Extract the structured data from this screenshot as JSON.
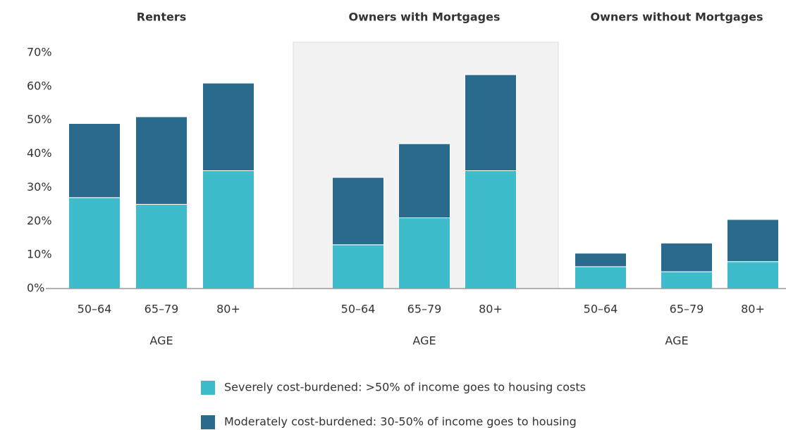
{
  "chart_data": {
    "type": "bar",
    "stacked": true,
    "ylim": [
      0,
      70
    ],
    "yticks": [
      {
        "value": 0,
        "label": "0%"
      },
      {
        "value": 10,
        "label": "10%"
      },
      {
        "value": 20,
        "label": "20%"
      },
      {
        "value": 30,
        "label": "30%"
      },
      {
        "value": 40,
        "label": "40%"
      },
      {
        "value": 50,
        "label": "50%"
      },
      {
        "value": 60,
        "label": "60%"
      },
      {
        "value": 70,
        "label": "70%"
      }
    ],
    "legend": [
      {
        "name": "Severely cost-burdened: >50% of income goes to housing costs",
        "color": "#3fbccc"
      },
      {
        "name": "Moderately cost-burdened: 30-50% of income goes to housing",
        "color": "#2a6a8c"
      }
    ],
    "panels": [
      {
        "title": "Renters",
        "x_label": "AGE",
        "categories": [
          "50–64",
          "65–79",
          "80+"
        ],
        "highlight": false,
        "series": [
          {
            "values": [
              27,
              25,
              35
            ]
          },
          {
            "values": [
              22,
              26,
              26
            ]
          }
        ]
      },
      {
        "title": "Owners with Mortgages",
        "x_label": "AGE",
        "categories": [
          "50–64",
          "65–79",
          "80+"
        ],
        "highlight": true,
        "series": [
          {
            "values": [
              13,
              21,
              35
            ]
          },
          {
            "values": [
              20,
              22,
              28.5
            ]
          }
        ]
      },
      {
        "title": "Owners without Mortgages",
        "x_label": "AGE",
        "categories": [
          "50–64",
          "65–79",
          "80+"
        ],
        "highlight": false,
        "series": [
          {
            "values": [
              6.5,
              5,
              8
            ]
          },
          {
            "values": [
              4,
              8.5,
              12.5
            ]
          }
        ]
      }
    ]
  }
}
